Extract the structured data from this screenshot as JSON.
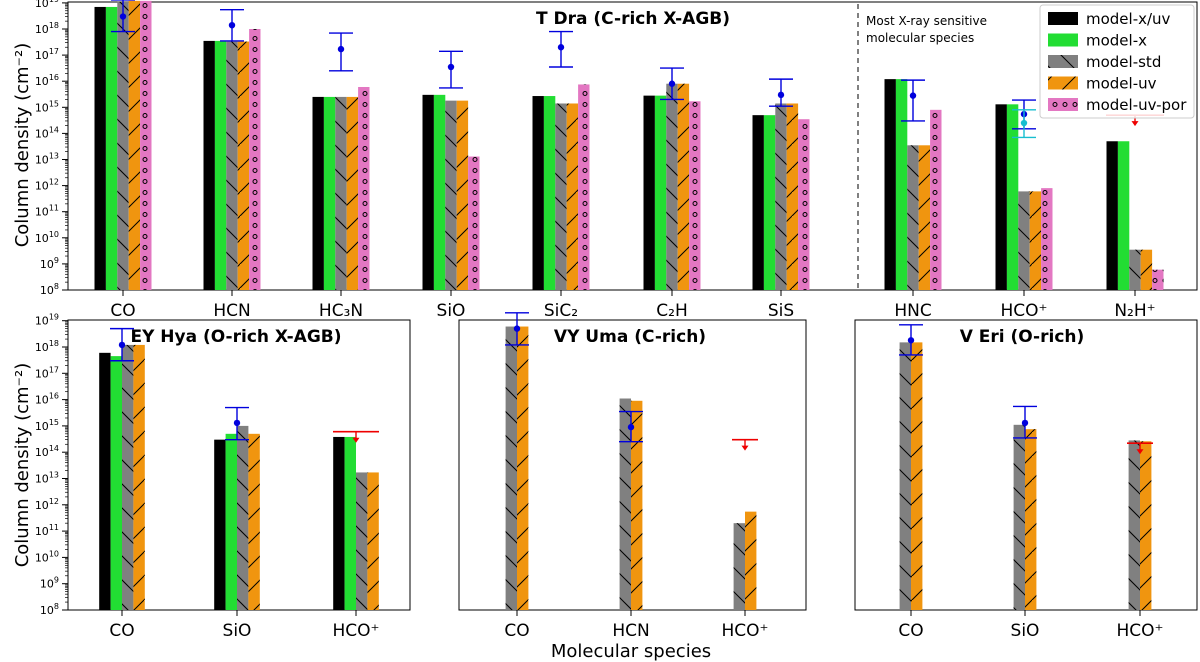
{
  "figure": {
    "xlabel": "Molecular species",
    "ylabel": "Column density (cm⁻²)"
  },
  "styles": {
    "model-x/uv": {
      "color": "#000000",
      "pattern": "solid"
    },
    "model-x": {
      "color": "#22dd33",
      "pattern": "solid"
    },
    "model-std": {
      "color": "#808080",
      "pattern": "backslash"
    },
    "model-uv": {
      "color": "#f0950f",
      "pattern": "slash"
    },
    "model-uv-por": {
      "color": "#e377c2",
      "pattern": "circles"
    },
    "obs_color": "#0000dd",
    "obs_alt_color": "#17becf",
    "limit_color": "#ee0000"
  },
  "legend": {
    "labels": [
      "model-x/uv",
      "model-x",
      "model-std",
      "model-uv",
      "model-uv-por"
    ]
  },
  "annotation": {
    "text_line1": "Most X-ray sensitive",
    "text_line2": "molecular species"
  },
  "chart_data": [
    {
      "type": "bar",
      "title": "T Dra (C-rich X-AGB)",
      "ylabel": "Column density (cm⁻²)",
      "yscale": "log",
      "ylim": [
        100000000.0,
        1e+19
      ],
      "categories": [
        "CO",
        "HCN",
        "HC₃N",
        "SiO",
        "SiC₂",
        "C₂H",
        "SiS",
        "HNC",
        "HCO⁺",
        "N₂H⁺"
      ],
      "series": [
        {
          "name": "model-x/uv",
          "values": [
            7e+18,
            3.5e+17,
            2500000000000000.0,
            3000000000000000.0,
            2700000000000000.0,
            2800000000000000.0,
            500000000000000.0,
            1.2e+16,
            1300000000000000.0,
            50000000000000.0
          ]
        },
        {
          "name": "model-x",
          "values": [
            7e+18,
            3.5e+17,
            2500000000000000.0,
            3000000000000000.0,
            2700000000000000.0,
            2800000000000000.0,
            500000000000000.0,
            1.2e+16,
            1300000000000000.0,
            50000000000000.0
          ]
        },
        {
          "name": "model-std",
          "values": [
            1.1e+19,
            3.3e+17,
            2500000000000000.0,
            1800000000000000.0,
            1400000000000000.0,
            8000000000000000.0,
            1400000000000000.0,
            35000000000000.0,
            600000000000.0,
            3500000000.0
          ]
        },
        {
          "name": "model-uv",
          "values": [
            1.2e+19,
            3.3e+17,
            2500000000000000.0,
            1800000000000000.0,
            1400000000000000.0,
            8000000000000000.0,
            1400000000000000.0,
            35000000000000.0,
            600000000000.0,
            3500000000.0
          ]
        },
        {
          "name": "model-uv-por",
          "values": [
            1.2e+19,
            1e+18,
            6000000000000000.0,
            13000000000000.0,
            7500000000000000.0,
            1700000000000000.0,
            350000000000000.0,
            800000000000000.0,
            800000000000.0,
            600000000.0
          ]
        }
      ],
      "observations": [
        {
          "category": "CO",
          "value": 3e+18,
          "low": 8e+17,
          "high": 1.3e+19
        },
        {
          "category": "HCN",
          "value": 1.4e+18,
          "low": 3.5e+17,
          "high": 5.5e+18
        },
        {
          "category": "HC₃N",
          "value": 1.7e+17,
          "low": 2.5e+16,
          "high": 7e+17
        },
        {
          "category": "SiO",
          "value": 3.5e+16,
          "low": 5500000000000000.0,
          "high": 1.4e+17
        },
        {
          "category": "SiC₂",
          "value": 2e+17,
          "low": 3.5e+16,
          "high": 8e+17
        },
        {
          "category": "C₂H",
          "value": 8000000000000000.0,
          "low": 2000000000000000.0,
          "high": 3.2e+16
        },
        {
          "category": "SiS",
          "value": 3000000000000000.0,
          "low": 1100000000000000.0,
          "high": 1.2e+16
        },
        {
          "category": "HNC",
          "value": 2800000000000000.0,
          "low": 300000000000000.0,
          "high": 1.1e+16
        },
        {
          "category": "HCO⁺",
          "value": 550000000000000.0,
          "low": 150000000000000.0,
          "high": 1900000000000000.0
        },
        {
          "category": "HCO⁺",
          "value": 250000000000000.0,
          "low": 70000000000000.0,
          "high": 800000000000000.0,
          "alt": true
        }
      ],
      "upper_limits": [
        {
          "category": "N₂H⁺",
          "value": 500000000000000.0
        }
      ]
    },
    {
      "type": "bar",
      "title": "EY Hya (O-rich X-AGB)",
      "ylabel": "Column density (cm⁻²)",
      "yscale": "log",
      "ylim": [
        100000000.0,
        1e+19
      ],
      "categories": [
        "CO",
        "SiO",
        "HCO⁺"
      ],
      "series": [
        {
          "name": "model-x/uv",
          "values": [
            6e+17,
            300000000000000.0,
            380000000000000.0
          ]
        },
        {
          "name": "model-x",
          "values": [
            4.5e+17,
            500000000000000.0,
            380000000000000.0
          ]
        },
        {
          "name": "model-std",
          "values": [
            1.2e+18,
            1000000000000000.0,
            17000000000000.0
          ]
        },
        {
          "name": "model-uv",
          "values": [
            1.2e+18,
            500000000000000.0,
            17000000000000.0
          ]
        }
      ],
      "observations": [
        {
          "category": "CO",
          "value": 1.2e+18,
          "low": 3e+17,
          "high": 5e+18
        },
        {
          "category": "SiO",
          "value": 1300000000000000.0,
          "low": 300000000000000.0,
          "high": 5000000000000000.0
        }
      ],
      "upper_limits": [
        {
          "category": "HCO⁺",
          "value": 600000000000000.0
        }
      ]
    },
    {
      "type": "bar",
      "title": "VY Uma (C-rich)",
      "yscale": "log",
      "ylim": [
        100000000.0,
        1e+19
      ],
      "categories": [
        "CO",
        "HCN",
        "HCO⁺"
      ],
      "series": [
        {
          "name": "model-std",
          "values": [
            6e+18,
            1.1e+16,
            200000000000.0
          ]
        },
        {
          "name": "model-uv",
          "values": [
            6e+18,
            9000000000000000.0,
            550000000000.0
          ]
        }
      ],
      "observations": [
        {
          "category": "CO",
          "value": 5e+18,
          "low": 1.2e+18,
          "high": 2e+19
        },
        {
          "category": "HCN",
          "value": 900000000000000.0,
          "low": 250000000000000.0,
          "high": 3500000000000000.0
        }
      ],
      "upper_limits": [
        {
          "category": "HCO⁺",
          "value": 300000000000000.0
        }
      ]
    },
    {
      "type": "bar",
      "title": "V Eri (O-rich)",
      "yscale": "log",
      "ylim": [
        100000000.0,
        1e+19
      ],
      "categories": [
        "CO",
        "SiO",
        "HCO⁺"
      ],
      "series": [
        {
          "name": "model-std",
          "values": [
            1.5e+18,
            1100000000000000.0,
            280000000000000.0
          ]
        },
        {
          "name": "model-uv",
          "values": [
            1.5e+18,
            750000000000000.0,
            260000000000000.0
          ]
        }
      ],
      "observations": [
        {
          "category": "CO",
          "value": 1.8e+18,
          "low": 5e+17,
          "high": 7e+18
        },
        {
          "category": "SiO",
          "value": 1300000000000000.0,
          "low": 350000000000000.0,
          "high": 5500000000000000.0
        }
      ],
      "upper_limits": [
        {
          "category": "HCO⁺",
          "value": 220000000000000.0
        }
      ]
    }
  ]
}
